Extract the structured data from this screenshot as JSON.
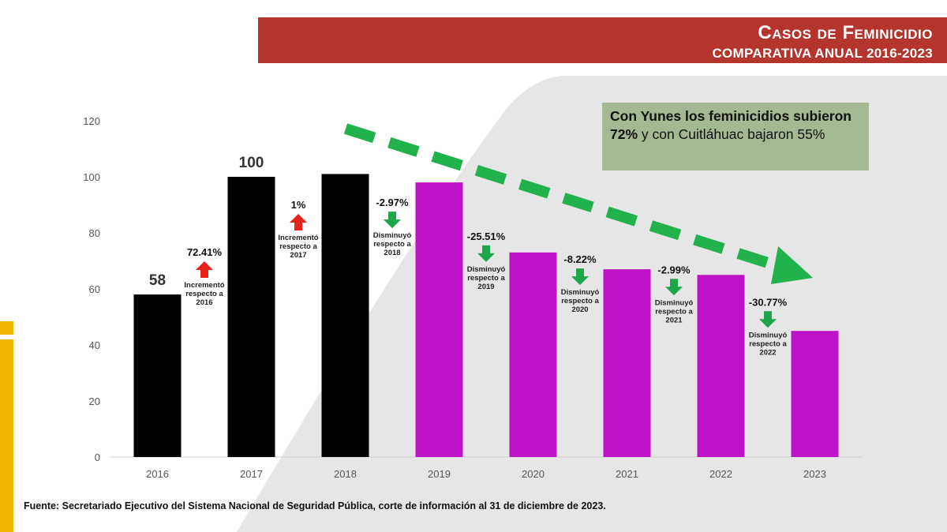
{
  "header": {
    "title": "Casos de Feminicidio",
    "subtitle": "COMPARATIVA ANUAL 2016-2023"
  },
  "callout": {
    "bold": "Con Yunes los feminicidios subieron 72%",
    "rest": " y con Cuitláhuac bajaron 55%"
  },
  "source": "Fuente: Secretariado Ejecutivo del Sistema Nacional de Seguridad Pública, corte de información al 31 de diciembre de 2023.",
  "colors": {
    "header": "#b5352c",
    "bar_dark": "#000000",
    "bar_purple": "#bf12c8",
    "arrow_up": "#e8211a",
    "arrow_down": "#1da64a",
    "trend": "#22b24c",
    "callout": "#a4b893"
  },
  "chart_data": {
    "type": "bar",
    "categories": [
      "2016",
      "2017",
      "2018",
      "2019",
      "2020",
      "2021",
      "2022",
      "2023"
    ],
    "values": [
      58,
      100,
      101,
      98,
      73,
      67,
      65,
      45
    ],
    "bar_colors": [
      "dark",
      "dark",
      "dark",
      "purple",
      "purple",
      "purple",
      "purple",
      "purple"
    ],
    "value_labels": [
      {
        "index": 0,
        "text": "58"
      },
      {
        "index": 1,
        "text": "100"
      }
    ],
    "yticks": [
      0,
      20,
      40,
      60,
      80,
      100,
      120
    ],
    "ylim": [
      0,
      120
    ],
    "annotations": [
      {
        "between": 0,
        "pct": "72.41%",
        "dir": "up",
        "lines": [
          "Incrementó",
          "respecto a",
          "2016"
        ]
      },
      {
        "between": 1,
        "pct": "1%",
        "dir": "up",
        "lines": [
          "Incrementó",
          "respecto a",
          "2017"
        ]
      },
      {
        "between": 2,
        "pct": "-2.97%",
        "dir": "down",
        "lines": [
          "Disminuyó",
          "respecto a",
          "2018"
        ]
      },
      {
        "between": 3,
        "pct": "-25.51%",
        "dir": "down",
        "lines": [
          "Disminuyó",
          "respecto a",
          "2019"
        ]
      },
      {
        "between": 4,
        "pct": "-8.22%",
        "dir": "down",
        "lines": [
          "Disminuyó",
          "respecto a",
          "2020"
        ]
      },
      {
        "between": 5,
        "pct": "-2.99%",
        "dir": "down",
        "lines": [
          "Disminuyó",
          "respecto a",
          "2021"
        ]
      },
      {
        "between": 6,
        "pct": "-30.77%",
        "dir": "down",
        "lines": [
          "Disminuyó",
          "respecto a",
          "2022"
        ]
      }
    ],
    "title": "Casos de Feminicidio",
    "xlabel": "",
    "ylabel": ""
  }
}
